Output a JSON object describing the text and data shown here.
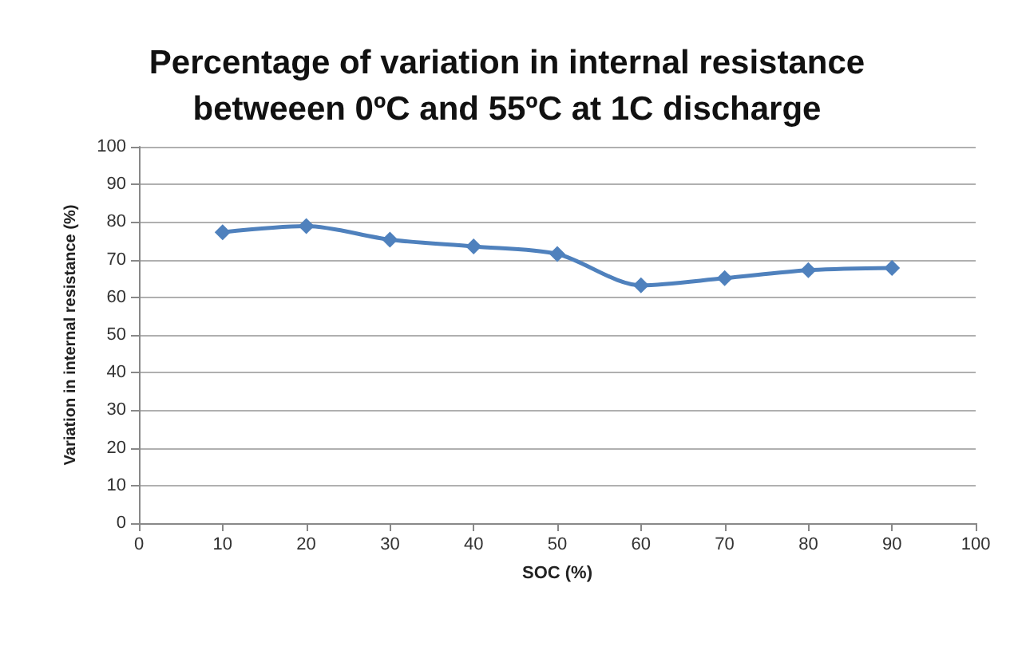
{
  "chart_data": {
    "type": "line",
    "title": "Percentage of variation in internal resistance\nbetweeen 0ºC and 55ºC at 1C discharge",
    "xlabel": "SOC (%)",
    "ylabel": "Variation in internal resistance (%)",
    "x": [
      10,
      20,
      30,
      40,
      50,
      60,
      70,
      80,
      90
    ],
    "series": [
      {
        "color": "#4f81bd",
        "values": [
          77.3,
          78.9,
          75.3,
          73.5,
          71.5,
          63.2,
          65.1,
          67.2,
          67.8
        ]
      }
    ],
    "xlim": [
      0,
      100
    ],
    "xticks": [
      0,
      10,
      20,
      30,
      40,
      50,
      60,
      70,
      80,
      90,
      100
    ],
    "ylim": [
      0,
      100
    ],
    "yticks": [
      0,
      10,
      20,
      30,
      40,
      50,
      60,
      70,
      80,
      90,
      100
    ],
    "grid": "y",
    "marker": "diamond",
    "line_style": "solid"
  }
}
